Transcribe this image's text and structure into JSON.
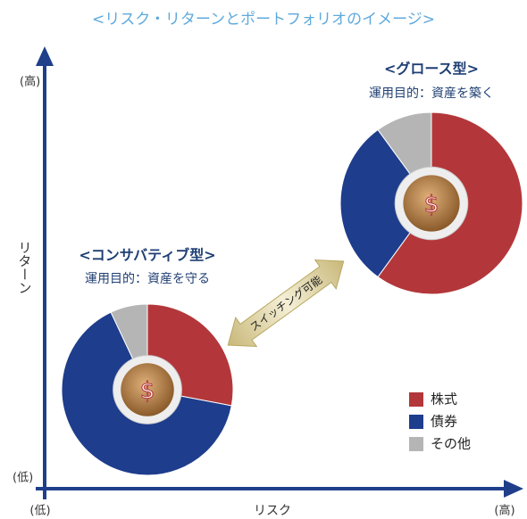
{
  "title": "<リスク・リターンとポートフォリオのイメージ>",
  "axes": {
    "y_label": "リターン",
    "y_high": "(高)",
    "y_low": "(低)",
    "x_label": "リスク",
    "x_low": "(低)",
    "x_high": "(高)"
  },
  "legend": {
    "items": [
      "株式",
      "債券",
      "その他"
    ],
    "colors": [
      "#b3373a",
      "#1e3d8c",
      "#b5b5b5"
    ]
  },
  "portfolios": [
    {
      "type": "pie",
      "name": "<コンサバティブ型>",
      "purpose": "運用目的：資産を守る",
      "coin": "$",
      "values": [
        28,
        65,
        7
      ]
    },
    {
      "type": "pie",
      "name": "<グロース型>",
      "purpose": "運用目的：資産を築く",
      "coin": "$",
      "values": [
        60,
        30,
        10
      ]
    }
  ],
  "switch_label": "スイッチング可能"
}
